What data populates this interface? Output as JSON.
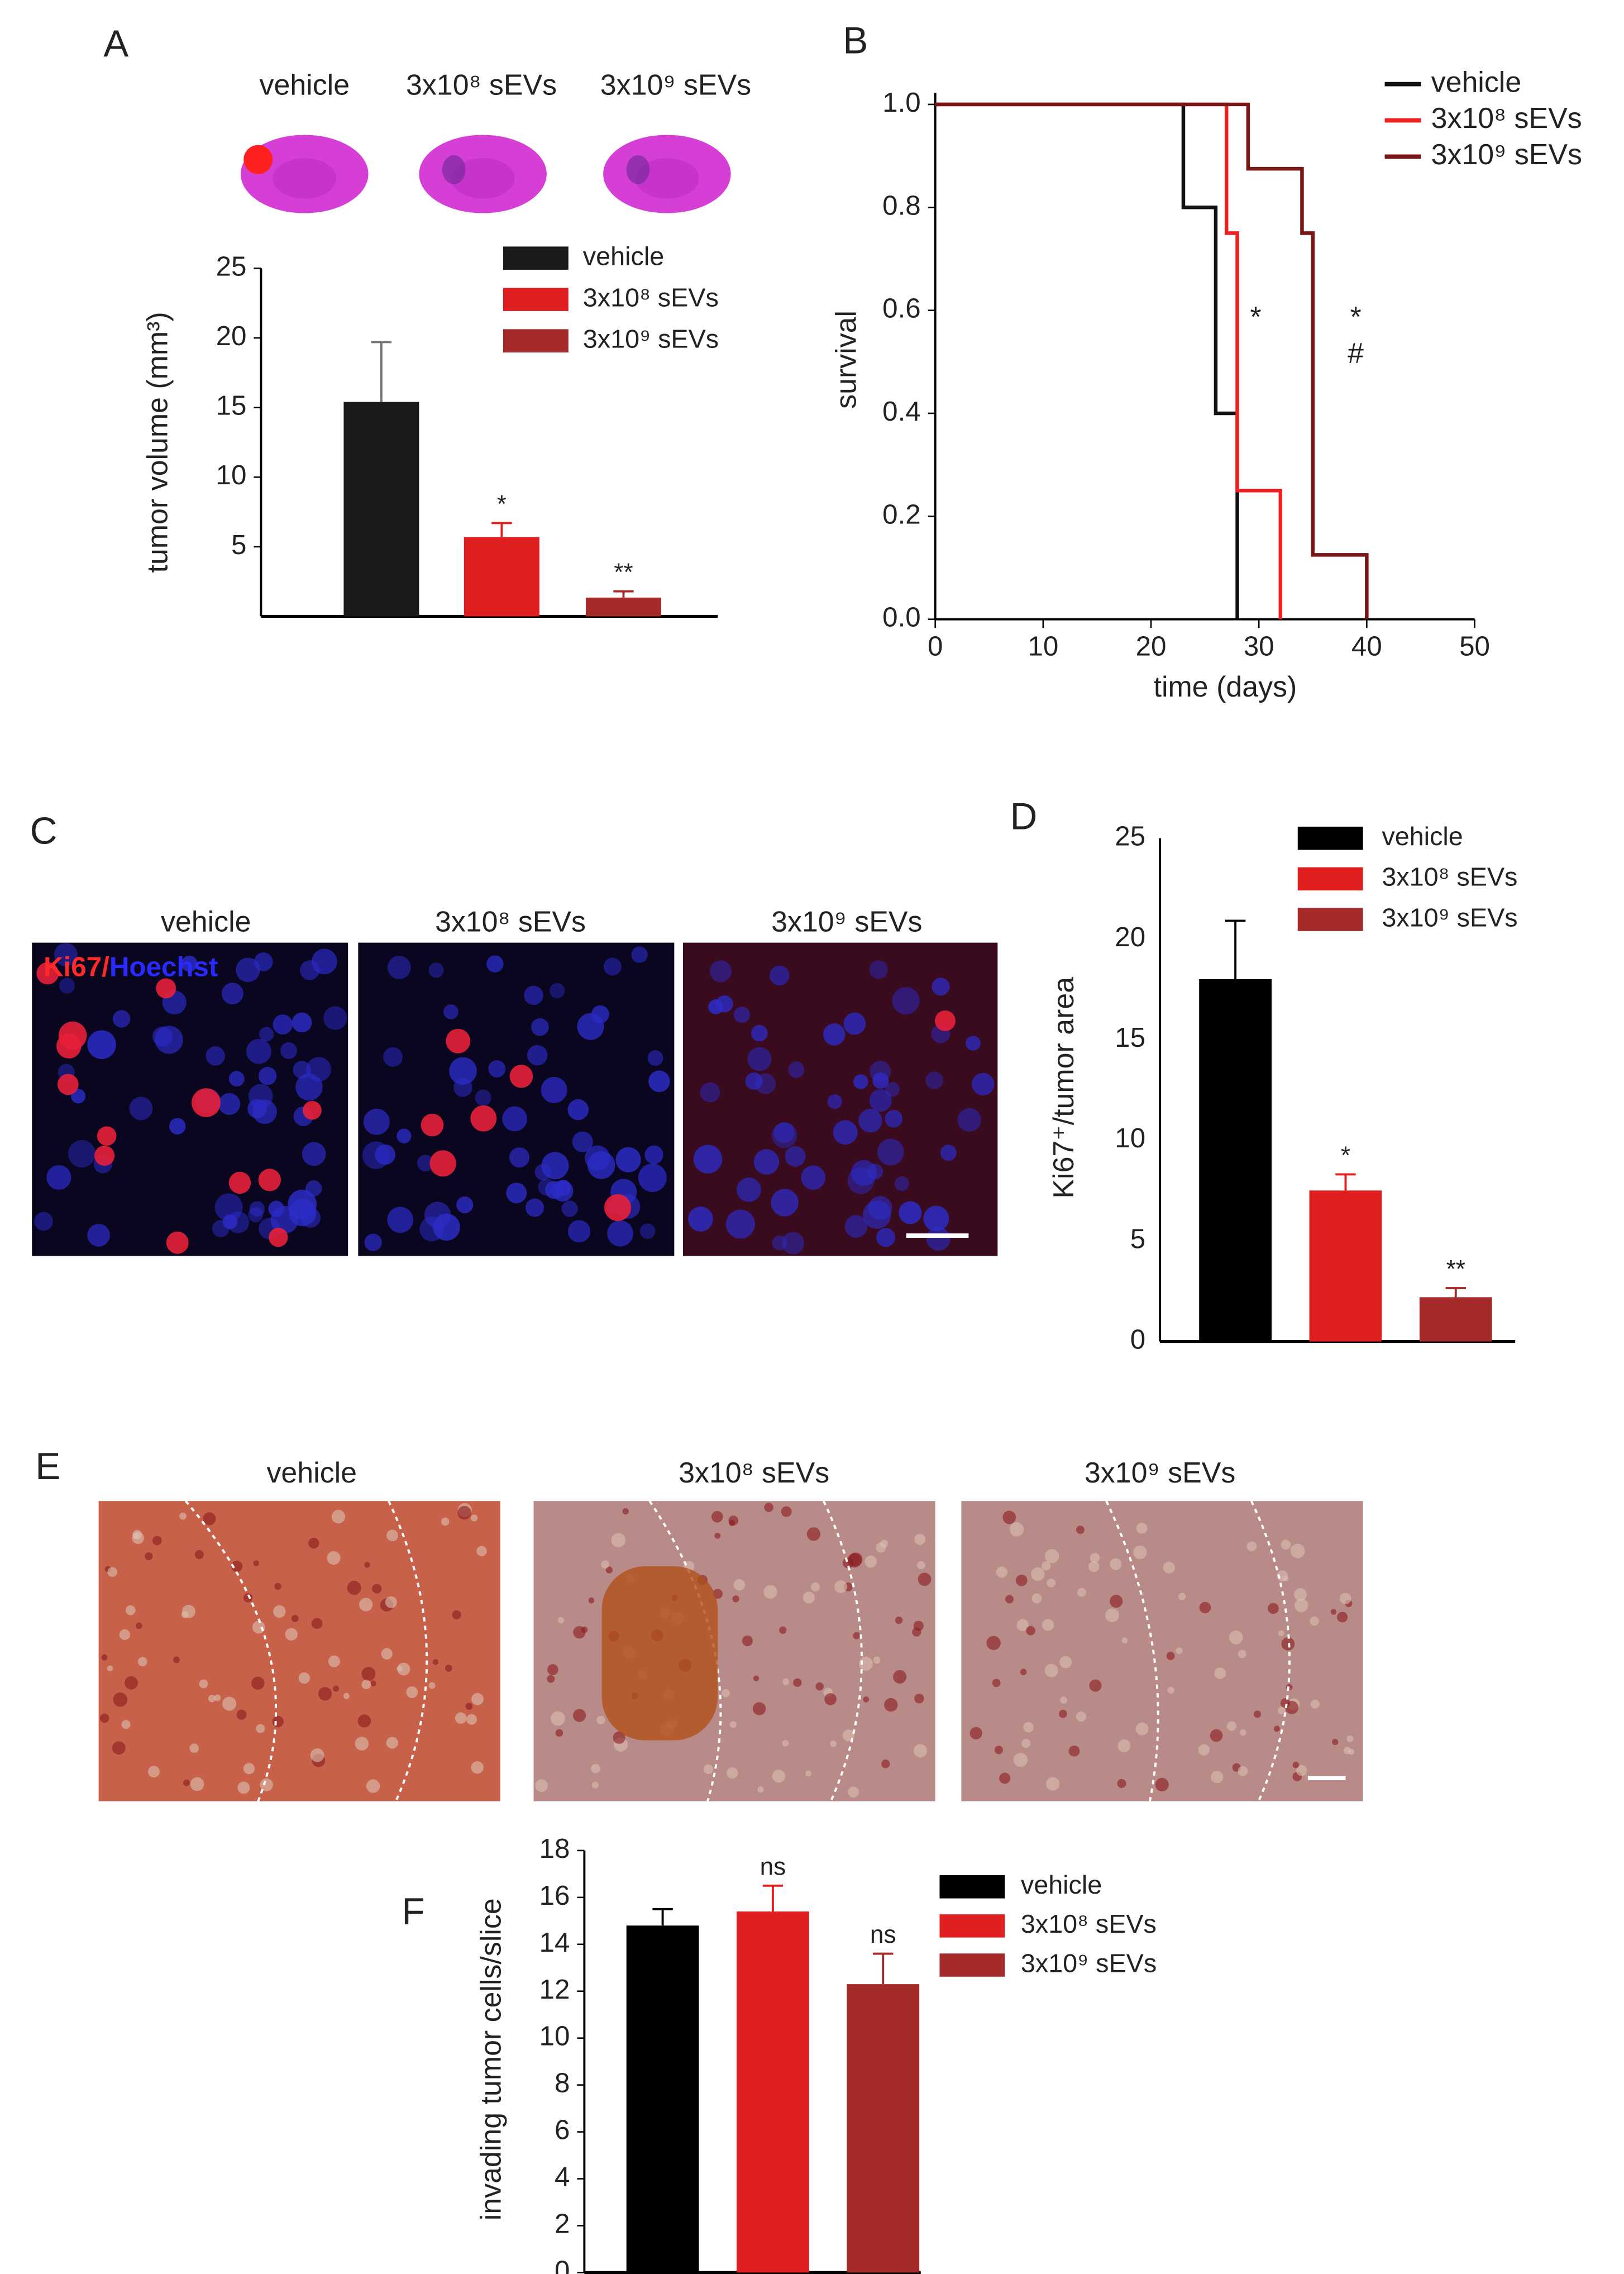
{
  "panel_letters": [
    "A",
    "B",
    "C",
    "D",
    "E",
    "F"
  ],
  "brain_slices": {
    "labels": [
      "vehicle",
      "3x10⁸ sEVs",
      "3x10⁹ sEVs"
    ]
  },
  "ki67_images": {
    "labels": [
      "vehicle",
      "3x10⁸ sEVs",
      "3x10⁹ sEVs"
    ],
    "stain_labels": [
      "Ki67/",
      "Hoechst"
    ]
  },
  "invasion_images": {
    "labels": [
      "vehicle",
      "3x10⁸ sEVs",
      "3x10⁹ sEVs"
    ]
  },
  "chart_data": [
    {
      "type": "bar",
      "ylabel": "tumor volume (mm³)",
      "ylim": [
        0,
        25
      ],
      "yticks": [
        5,
        10,
        15,
        20,
        25
      ],
      "series": [
        {
          "name": "vehicle",
          "color": "#1a1a1a",
          "values": [
            15.4
          ],
          "errors": [
            4.3
          ]
        },
        {
          "name": "3x10⁸ sEVs",
          "color": "#e02020",
          "values": [
            5.7
          ],
          "errors": [
            1.0
          ],
          "significance": [
            "*"
          ]
        },
        {
          "name": "3x10⁹ sEVs",
          "color": "#a52a2a",
          "values": [
            1.35
          ],
          "errors": [
            0.45
          ],
          "significance": [
            "**"
          ]
        }
      ]
    },
    {
      "type": "line",
      "xlabel": "time (days)",
      "ylabel": "survival",
      "xlim": [
        0,
        50
      ],
      "ylim": [
        0,
        1
      ],
      "xticks": [
        0,
        10,
        20,
        30,
        40,
        50
      ],
      "yticks": [
        {
          "value": 0,
          "label": "0.0"
        },
        0.2,
        0.4,
        0.6,
        0.8,
        {
          "value": 1,
          "label": "1.0"
        }
      ],
      "legend": "top-right",
      "annotations": [
        "*",
        "*",
        "#"
      ],
      "series": [
        {
          "name": "vehicle",
          "color": "#111111",
          "x": [
            0,
            23,
            23,
            26,
            26,
            28,
            28
          ],
          "values": [
            1,
            1,
            0.8,
            0.8,
            0.4,
            0.4,
            0
          ]
        },
        {
          "name": "3x10⁸ sEVs",
          "color": "#ee2020",
          "x": [
            0,
            27,
            27,
            28,
            28,
            32,
            32
          ],
          "values": [
            1,
            1,
            0.75,
            0.75,
            0.25,
            0.25,
            0
          ]
        },
        {
          "name": "3x10⁹ sEVs",
          "color": "#7a1515",
          "x": [
            0,
            29,
            29,
            34,
            34,
            35,
            35,
            40,
            40
          ],
          "values": [
            1,
            1,
            0.875,
            0.875,
            0.75,
            0.75,
            0.125,
            0.125,
            0
          ]
        }
      ]
    },
    {
      "type": "bar",
      "ylabel": "Ki67⁺/tumor area",
      "ylim": [
        0,
        25
      ],
      "yticks": [
        0,
        5,
        10,
        15,
        20,
        25
      ],
      "series": [
        {
          "name": "vehicle",
          "color": "#000000",
          "values": [
            18.0
          ],
          "errors": [
            2.9
          ]
        },
        {
          "name": "3x10⁸ sEVs",
          "color": "#e02020",
          "values": [
            7.5
          ],
          "errors": [
            0.8
          ],
          "significance": [
            "*"
          ]
        },
        {
          "name": "3x10⁹ sEVs",
          "color": "#a52a2a",
          "values": [
            2.2
          ],
          "errors": [
            0.45
          ],
          "significance": [
            "**"
          ]
        }
      ]
    },
    {
      "type": "bar",
      "ylabel": "invading tumor cells/slice",
      "ylim": [
        0,
        18
      ],
      "yticks": [
        0,
        2,
        4,
        6,
        8,
        10,
        12,
        14,
        16,
        18
      ],
      "series": [
        {
          "name": "vehicle",
          "color": "#000000",
          "values": [
            14.8
          ],
          "errors": [
            0.7
          ]
        },
        {
          "name": "3x10⁸ sEVs",
          "color": "#e02020",
          "values": [
            15.4
          ],
          "errors": [
            1.1
          ],
          "significance": [
            "ns"
          ]
        },
        {
          "name": "3x10⁹ sEVs",
          "color": "#a52a2a",
          "values": [
            12.3
          ],
          "errors": [
            1.3
          ],
          "significance": [
            "ns"
          ]
        }
      ]
    }
  ]
}
